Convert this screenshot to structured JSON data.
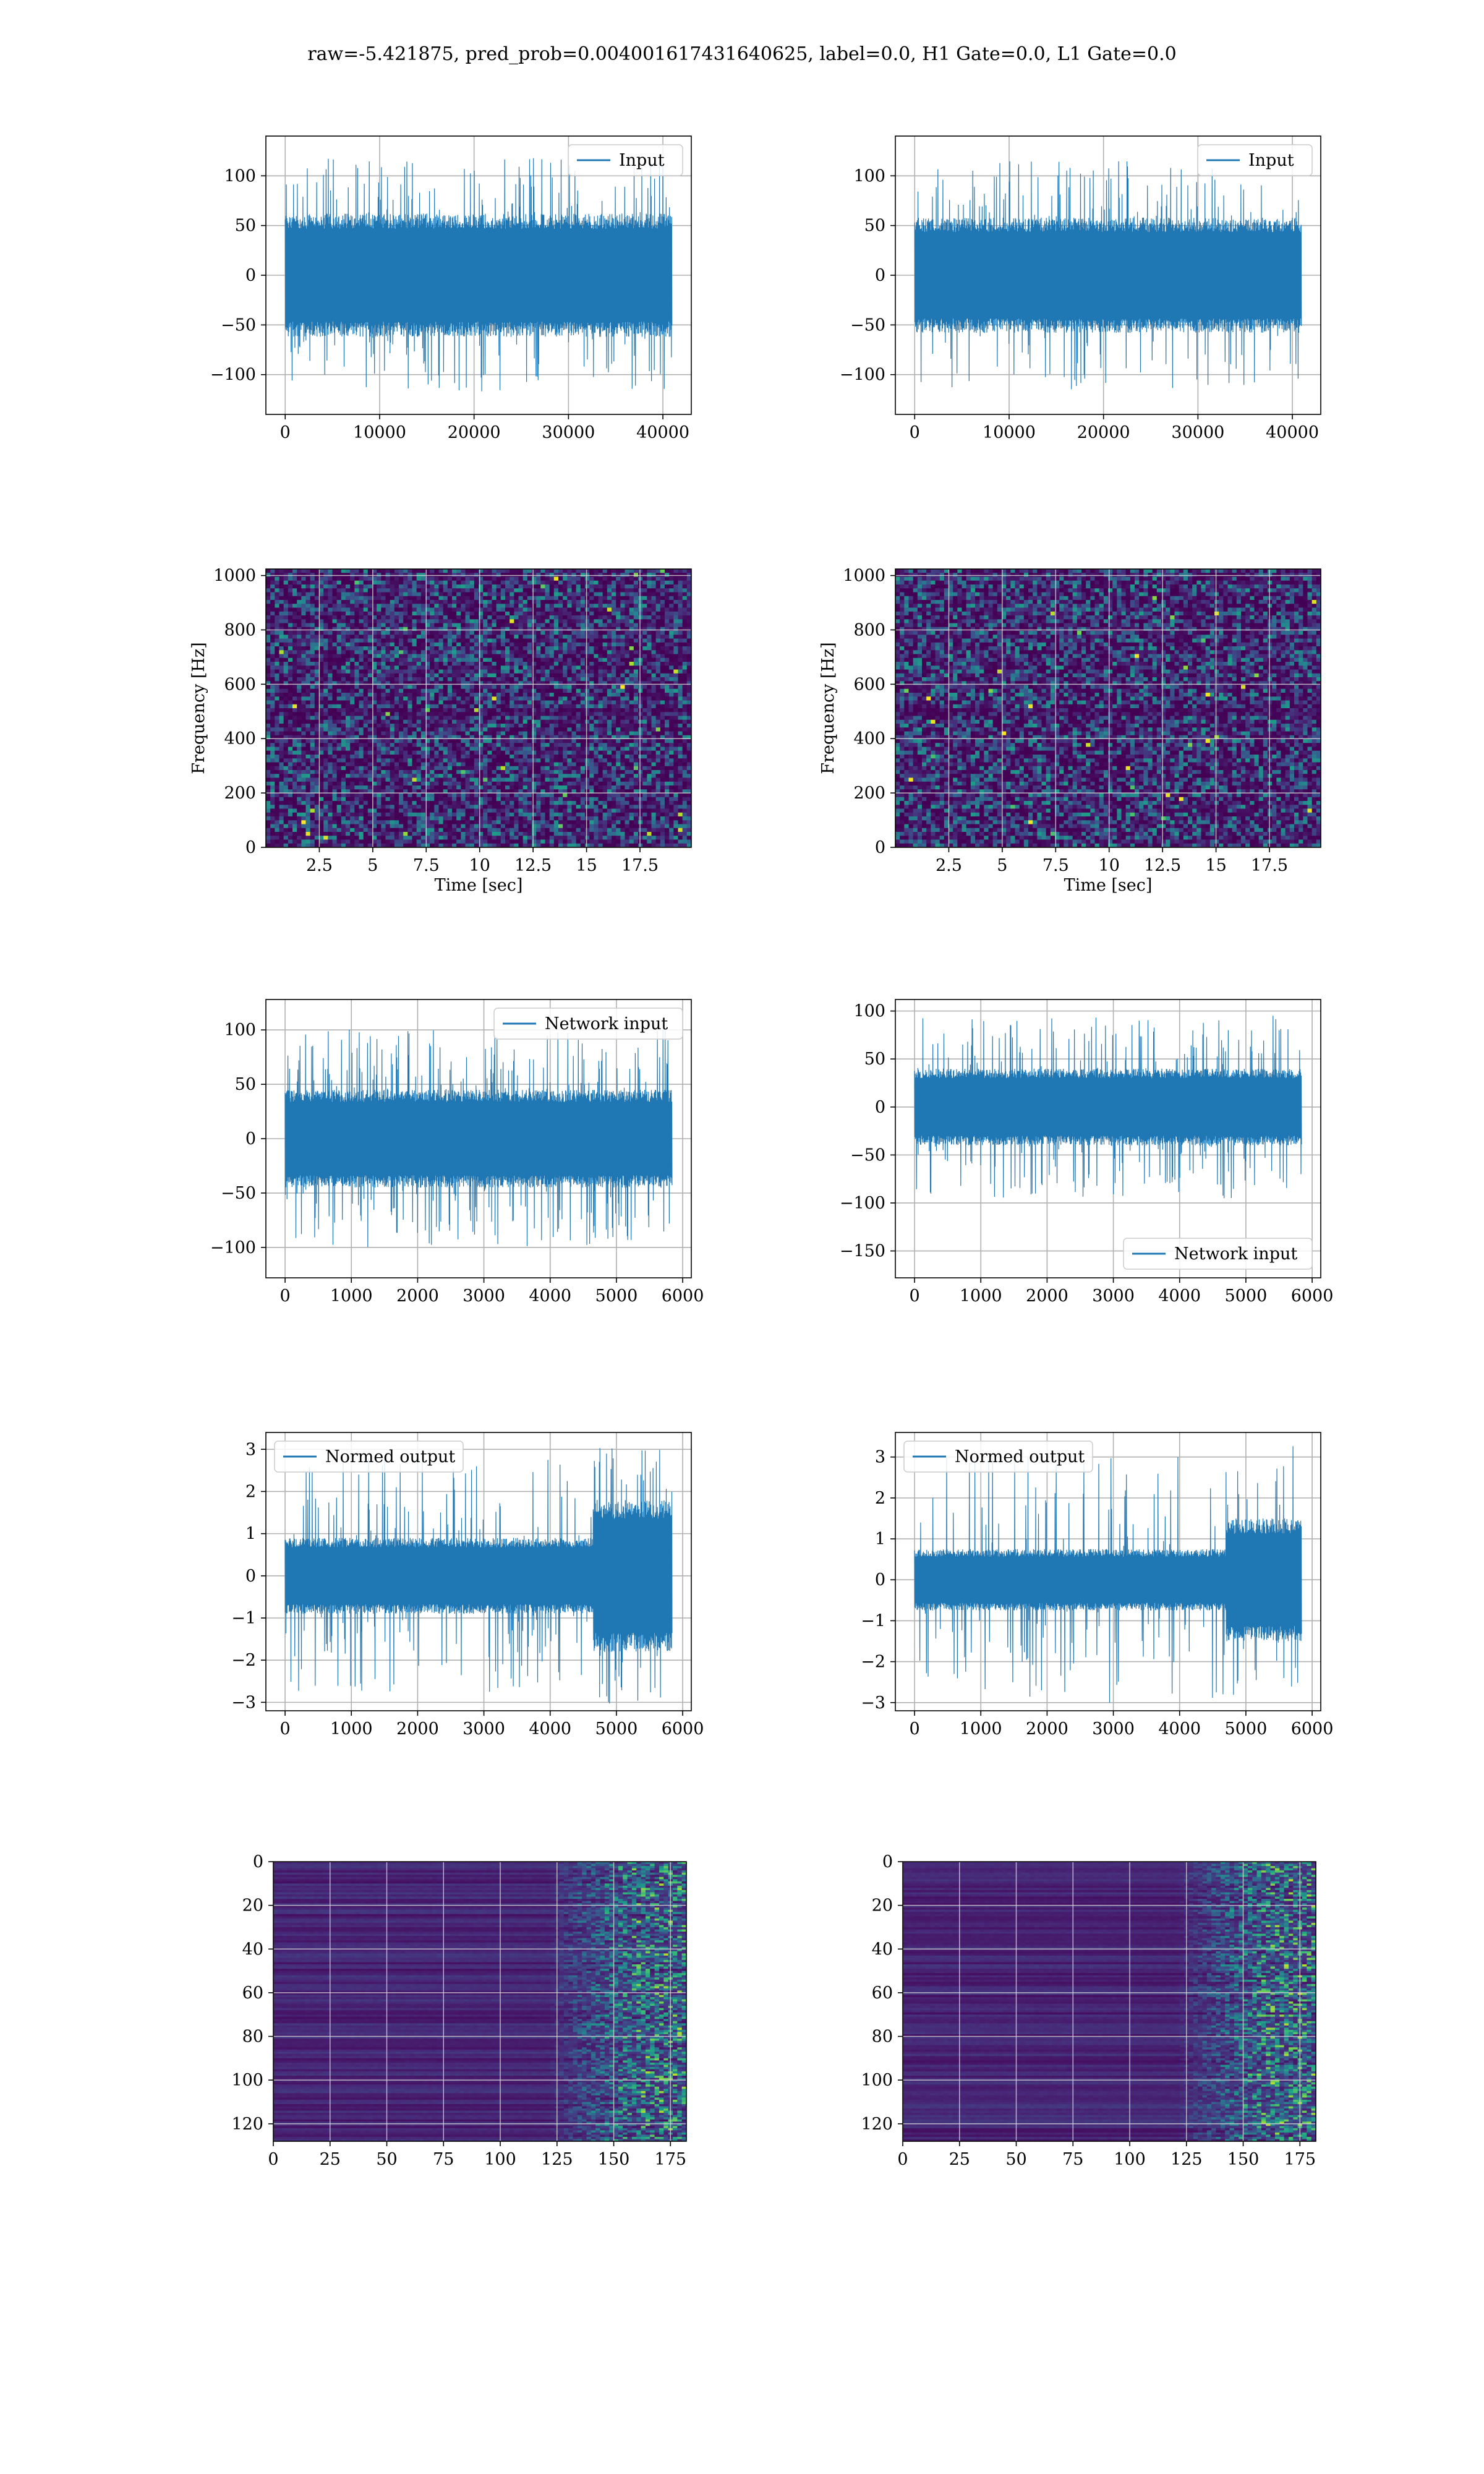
{
  "figure": {
    "title": "raw=-5.421875, pred_prob=0.004001617431640625, label=0.0, H1 Gate=0.0, L1 Gate=0.0"
  },
  "chart_data": [
    {
      "id": "row1-left",
      "type": "line",
      "grid": true,
      "legend_position": "top-right",
      "series": [
        {
          "name": "Input",
          "color": "#1f77b4"
        }
      ],
      "x_range": [
        0,
        40960
      ],
      "xlim": [
        -2048,
        43008
      ],
      "xticks": [
        0,
        10000,
        20000,
        30000,
        40000
      ],
      "ylim": [
        -140,
        140
      ],
      "yticks": [
        -100,
        -50,
        0,
        50,
        100
      ],
      "envelope": {
        "core": 62,
        "peak": 128,
        "spike_rate": 0.12
      }
    },
    {
      "id": "row1-right",
      "type": "line",
      "grid": true,
      "legend_position": "top-right",
      "series": [
        {
          "name": "Input",
          "color": "#1f77b4"
        }
      ],
      "x_range": [
        0,
        40960
      ],
      "xlim": [
        -2048,
        43008
      ],
      "xticks": [
        0,
        10000,
        20000,
        30000,
        40000
      ],
      "ylim": [
        -140,
        140
      ],
      "yticks": [
        -100,
        -50,
        0,
        50,
        100
      ],
      "envelope": {
        "core": 58,
        "peak": 125,
        "spike_rate": 0.1
      }
    },
    {
      "id": "row2-left",
      "type": "heatmap",
      "grid": true,
      "xlabel": "Time [sec]",
      "ylabel": "Frequency [Hz]",
      "xlim": [
        0,
        19.9
      ],
      "xticks": [
        2.5,
        5.0,
        7.5,
        10.0,
        12.5,
        15.0,
        17.5
      ],
      "ylim": [
        0,
        1024
      ],
      "yticks": [
        0,
        200,
        400,
        600,
        800,
        1000
      ],
      "colormap": "viridis"
    },
    {
      "id": "row2-right",
      "type": "heatmap",
      "grid": true,
      "xlabel": "Time [sec]",
      "ylabel": "Frequency [Hz]",
      "xlim": [
        0,
        19.9
      ],
      "xticks": [
        2.5,
        5.0,
        7.5,
        10.0,
        12.5,
        15.0,
        17.5
      ],
      "ylim": [
        0,
        1024
      ],
      "yticks": [
        0,
        200,
        400,
        600,
        800,
        1000
      ],
      "colormap": "viridis"
    },
    {
      "id": "row3-left",
      "type": "line",
      "grid": true,
      "legend_position": "top-right",
      "series": [
        {
          "name": "Network input",
          "color": "#1f77b4"
        }
      ],
      "x_range": [
        0,
        5840
      ],
      "xlim": [
        -290,
        6130
      ],
      "xticks": [
        0,
        1000,
        2000,
        3000,
        4000,
        5000,
        6000
      ],
      "ylim": [
        -128,
        128
      ],
      "yticks": [
        -100,
        -50,
        0,
        50,
        100
      ],
      "envelope": {
        "core": 45,
        "peak": 110,
        "spike_rate": 0.14
      }
    },
    {
      "id": "row3-right",
      "type": "line",
      "grid": true,
      "legend_position": "bottom-right",
      "series": [
        {
          "name": "Network input",
          "color": "#1f77b4"
        }
      ],
      "x_range": [
        0,
        5840
      ],
      "xlim": [
        -290,
        6130
      ],
      "xticks": [
        0,
        1000,
        2000,
        3000,
        4000,
        5000,
        6000
      ],
      "ylim": [
        -178,
        112
      ],
      "yticks": [
        -150,
        -100,
        -50,
        0,
        50,
        100
      ],
      "envelope": {
        "core": 40,
        "peak": 105,
        "spike_rate": 0.12
      }
    },
    {
      "id": "row4-left",
      "type": "line",
      "grid": true,
      "legend_position": "top-left",
      "series": [
        {
          "name": "Normed output",
          "color": "#1f77b4"
        }
      ],
      "x_range": [
        0,
        5840
      ],
      "xlim": [
        -290,
        6130
      ],
      "xticks": [
        0,
        1000,
        2000,
        3000,
        4000,
        5000,
        6000
      ],
      "ylim": [
        -3.2,
        3.4
      ],
      "yticks": [
        -3,
        -2,
        -1,
        0,
        1,
        2,
        3
      ],
      "envelope": {
        "core": 0.9,
        "peak": 3.1,
        "spike_rate": 0.12,
        "burst_from": 4650
      }
    },
    {
      "id": "row4-right",
      "type": "line",
      "grid": true,
      "legend_position": "top-left",
      "series": [
        {
          "name": "Normed output",
          "color": "#1f77b4"
        }
      ],
      "x_range": [
        0,
        5840
      ],
      "xlim": [
        -290,
        6130
      ],
      "xticks": [
        0,
        1000,
        2000,
        3000,
        4000,
        5000,
        6000
      ],
      "ylim": [
        -3.2,
        3.6
      ],
      "yticks": [
        -3,
        -2,
        -1,
        0,
        1,
        2,
        3
      ],
      "envelope": {
        "core": 0.75,
        "peak": 3.4,
        "spike_rate": 0.1,
        "burst_from": 4700
      }
    },
    {
      "id": "row5-left",
      "type": "heatmap",
      "grid": true,
      "xlim": [
        0,
        182
      ],
      "xticks": [
        0,
        25,
        50,
        75,
        100,
        125,
        150,
        175
      ],
      "ylim": [
        0,
        128
      ],
      "yticks": [
        0,
        20,
        40,
        60,
        80,
        100,
        120
      ],
      "y_inverted": true,
      "colormap": "viridis"
    },
    {
      "id": "row5-right",
      "type": "heatmap",
      "grid": true,
      "xlim": [
        0,
        182
      ],
      "xticks": [
        0,
        25,
        50,
        75,
        100,
        125,
        150,
        175
      ],
      "ylim": [
        0,
        128
      ],
      "yticks": [
        0,
        20,
        40,
        60,
        80,
        100,
        120
      ],
      "y_inverted": true,
      "colormap": "viridis"
    }
  ]
}
